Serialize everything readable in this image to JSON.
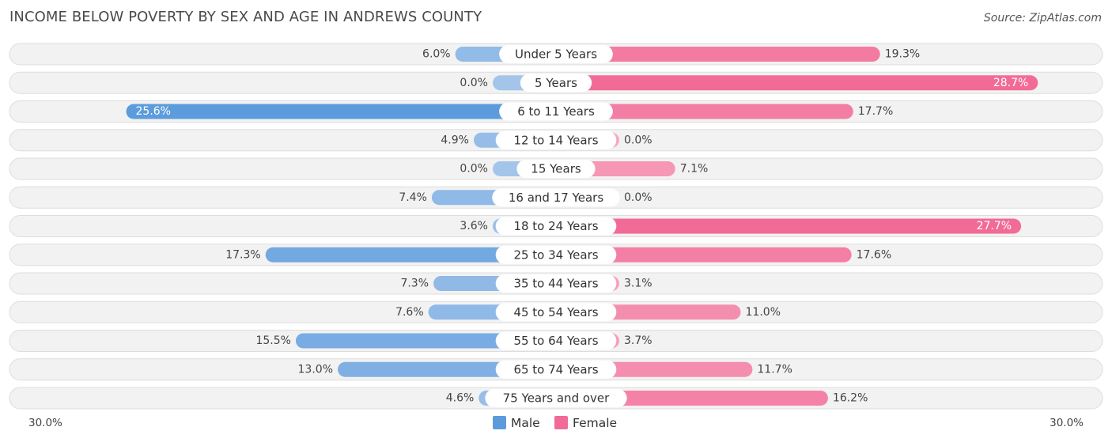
{
  "title": "INCOME BELOW POVERTY BY SEX AND AGE IN ANDREWS COUNTY",
  "source": "Source: ZipAtlas.com",
  "chart_data": {
    "type": "bar",
    "orientation": "horizontal-diverging",
    "title": "INCOME BELOW POVERTY BY SEX AND AGE IN ANDREWS COUNTY",
    "categories": [
      "Under 5 Years",
      "5 Years",
      "6 to 11 Years",
      "12 to 14 Years",
      "15 Years",
      "16 and 17 Years",
      "18 to 24 Years",
      "25 to 34 Years",
      "35 to 44 Years",
      "45 to 54 Years",
      "55 to 64 Years",
      "65 to 74 Years",
      "75 Years and over"
    ],
    "series": [
      {
        "name": "Male",
        "values": [
          6.0,
          0.0,
          25.6,
          4.9,
          0.0,
          7.4,
          3.6,
          17.3,
          7.3,
          7.6,
          15.5,
          13.0,
          4.6
        ],
        "labels": [
          "6.0%",
          "0.0%",
          "25.6%",
          "4.9%",
          "0.0%",
          "7.4%",
          "3.6%",
          "17.3%",
          "7.3%",
          "7.6%",
          "15.5%",
          "13.0%",
          "4.6%"
        ]
      },
      {
        "name": "Female",
        "values": [
          19.3,
          28.7,
          17.7,
          0.0,
          7.1,
          0.0,
          27.7,
          17.6,
          3.1,
          11.0,
          3.7,
          11.7,
          16.2
        ],
        "labels": [
          "19.3%",
          "28.7%",
          "17.7%",
          "0.0%",
          "7.1%",
          "0.0%",
          "27.7%",
          "17.6%",
          "3.1%",
          "11.0%",
          "3.7%",
          "11.7%",
          "16.2%"
        ]
      }
    ],
    "xlim": [
      -30,
      30
    ],
    "axis_labels": {
      "left": "30.0%",
      "right": "30.0%"
    },
    "legend": {
      "position": "bottom-center",
      "entries": [
        "Male",
        "Female"
      ]
    },
    "colors": {
      "male_strong": "#5b9bdc",
      "male_light": "#a4c5ea",
      "female_strong": "#f26b96",
      "female_light": "#f6a8c1",
      "row_bg": "#f2f2f2",
      "row_border": "#dddddd"
    }
  }
}
